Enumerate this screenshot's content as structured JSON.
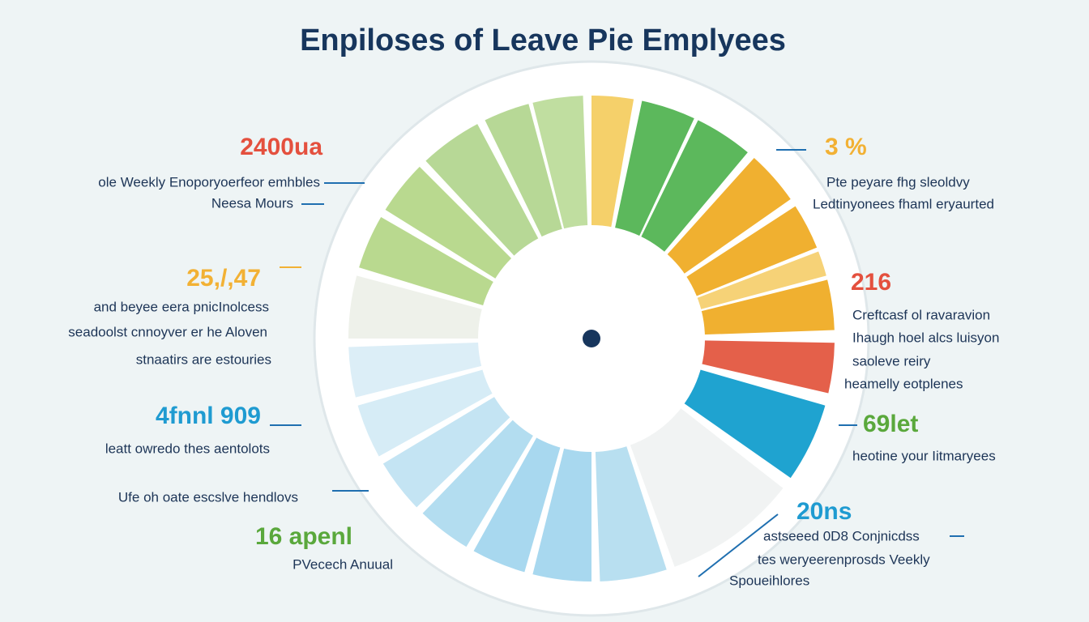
{
  "title": "Enpiloses of Leave Pie Emplyees",
  "left_callouts": [
    {
      "heading": "2400ua",
      "color": "#e4503e",
      "lines": [
        "ole Weekly Enoporyoerfeor emhbles",
        "Neesa Mours"
      ]
    },
    {
      "heading": "25,/,47",
      "color": "#f2b134",
      "lines": [
        "and beyee eera pnicInolcess",
        "seadoolst cnnoyver er he Aloven",
        "stnaatirs are estouries"
      ]
    },
    {
      "heading": "4fnnl 909",
      "color": "#1f9bd1",
      "lines": [
        "leatt owredo thes aentolots"
      ]
    },
    {
      "lines": [
        "Ufe oh oate escslve hendlovs"
      ]
    },
    {
      "heading": "16 apenl",
      "color": "#5aa83c",
      "lines": [
        "PVecech Anuual"
      ]
    }
  ],
  "right_callouts": [
    {
      "heading": "3 %",
      "color": "#f2b134",
      "lines": [
        "Pte peyare fhg sleoldvy",
        "Ledtinyonees fhaml eryaurted"
      ]
    },
    {
      "heading": "216",
      "color": "#e4503e",
      "lines": [
        "Creftcasf ol ravaravion",
        "Ihaugh hoel alcs luisyon",
        "saoleve reiry",
        "heamelly eotplenes"
      ]
    },
    {
      "heading": "69let",
      "color": "#5aa83c",
      "lines": [
        "heotine your Iitmaryees"
      ]
    },
    {
      "heading": "20ns",
      "color": "#1f9bd1",
      "lines": [
        "astseeed 0D8 Conjnicdss",
        "tes weryeerenprosds Veekly",
        "Spoueihlores"
      ]
    }
  ]
}
